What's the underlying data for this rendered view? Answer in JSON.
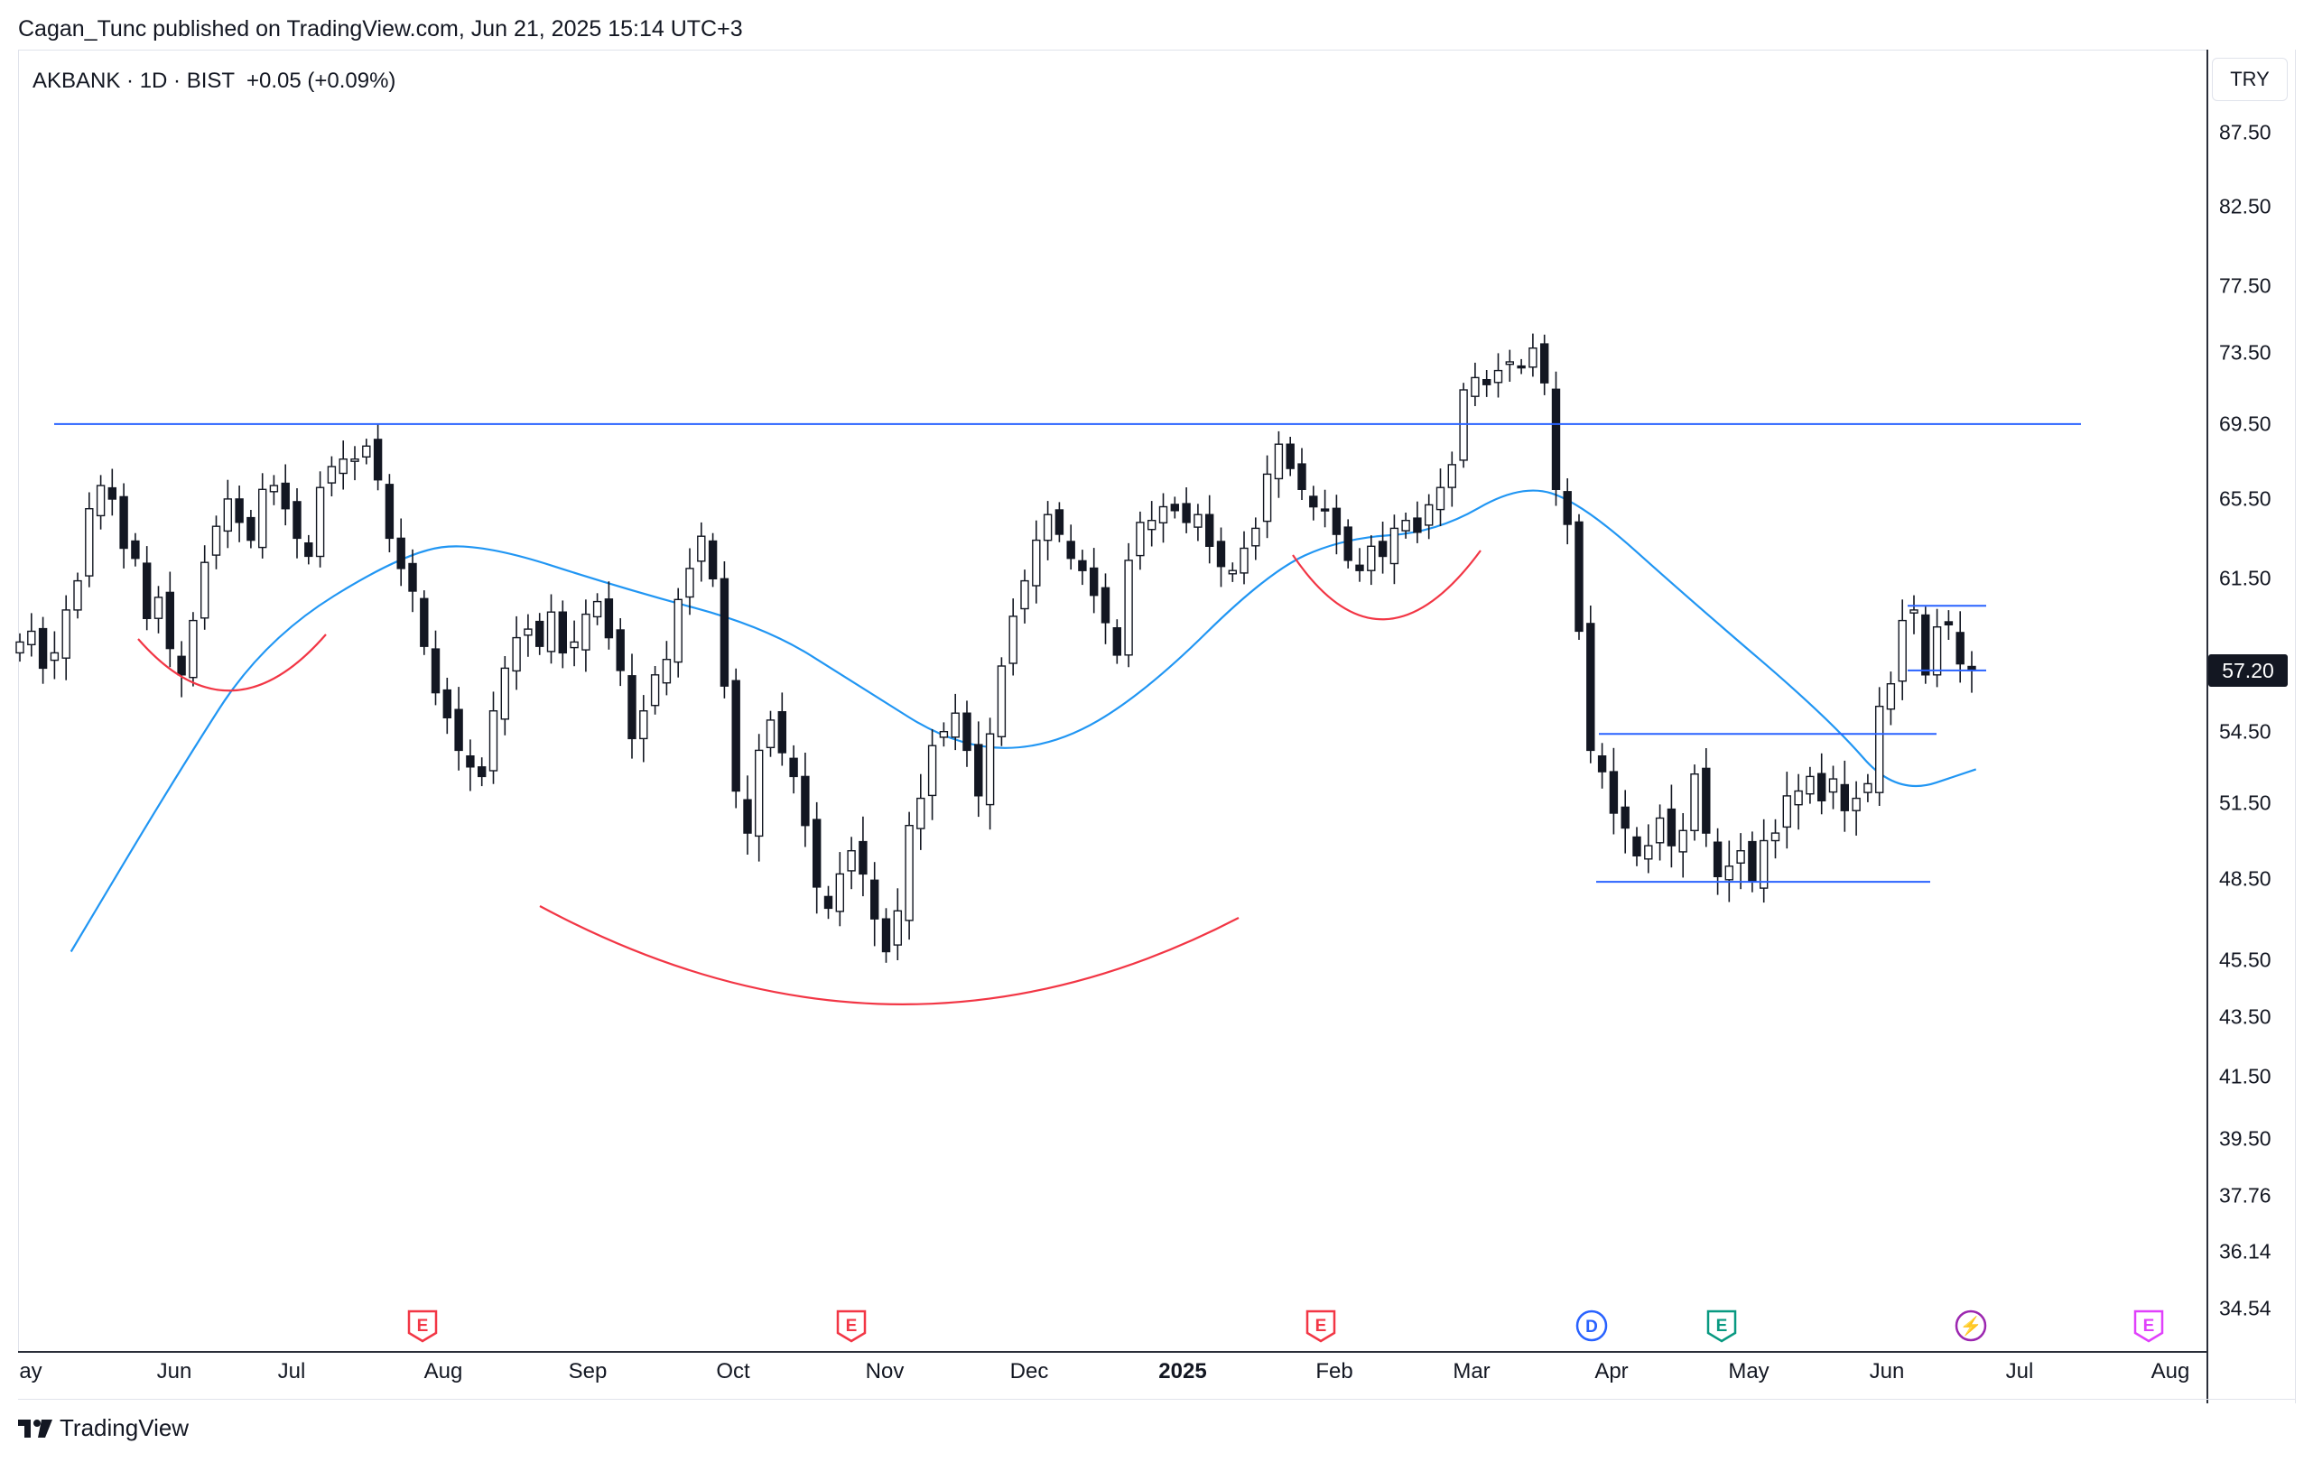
{
  "header": {
    "published_text": "Cagan_Tunc published on TradingView.com, Jun 21, 2025 15:14 UTC+3"
  },
  "legend": {
    "symbol_text": "AKBANK · 1D · BIST",
    "change_text": "+0.05 (+0.09%)"
  },
  "price_axis": {
    "currency": "TRY",
    "labels": [
      "87.50",
      "82.50",
      "77.50",
      "73.50",
      "69.50",
      "65.50",
      "61.50",
      "54.50",
      "51.50",
      "48.50",
      "45.50",
      "43.50",
      "41.50",
      "39.50",
      "37.76",
      "36.14",
      "34.54"
    ],
    "last_price": "57.20"
  },
  "time_axis": {
    "labels": [
      "ay",
      "Jun",
      "Jul",
      "Aug",
      "Sep",
      "Oct",
      "Nov",
      "Dec",
      "2025",
      "Feb",
      "Mar",
      "Apr",
      "May",
      "Jun",
      "Jul",
      "Aug"
    ]
  },
  "events": [
    {
      "letter": "E",
      "kind": "earnings",
      "color": "#f23645"
    },
    {
      "letter": "E",
      "kind": "earnings",
      "color": "#f23645"
    },
    {
      "letter": "E",
      "kind": "earnings",
      "color": "#f23645"
    },
    {
      "letter": "D",
      "kind": "dividend",
      "color": "#2962ff"
    },
    {
      "letter": "E",
      "kind": "earnings",
      "color": "#089981"
    },
    {
      "letter": "⚡",
      "kind": "split",
      "color": "#9c27b0"
    },
    {
      "letter": "E",
      "kind": "earnings",
      "color": "#e040fb"
    }
  ],
  "brand": {
    "name": "TradingView"
  },
  "colors": {
    "candle": "#131722",
    "ma": "#2196f3",
    "level": "#2962ff",
    "arc": "#f23645"
  },
  "chart_data": {
    "type": "candlestick",
    "symbol": "AKBANK",
    "interval": "1D",
    "exchange": "BIST",
    "ylim": [
      34.0,
      89.0
    ],
    "y_scale": "log",
    "last_price": 57.2,
    "ma_series": {
      "x": [
        "2024-05-10",
        "2024-06-01",
        "2024-06-20",
        "2024-07-20",
        "2024-08-05",
        "2024-09-05",
        "2024-10-05",
        "2024-10-25",
        "2024-11-15",
        "2024-12-05",
        "2024-12-25",
        "2025-01-20",
        "2025-02-05",
        "2025-02-25",
        "2025-03-15",
        "2025-03-28",
        "2025-04-20",
        "2025-05-20",
        "2025-06-03",
        "2025-06-20"
      ],
      "values": [
        45.8,
        52.5,
        58.6,
        62.8,
        63.3,
        61.0,
        59.2,
        56.5,
        53.8,
        53.8,
        56.2,
        61.8,
        63.5,
        63.8,
        66.3,
        65.3,
        60.5,
        55.0,
        51.8,
        52.9
      ]
    },
    "horizontal_levels": [
      69.5,
      60.2,
      57.2,
      54.4,
      48.4
    ],
    "candles": {
      "note": "daily OHLC approximated from the chart",
      "close": [
        58.5,
        59.0,
        57.3,
        58.0,
        60.0,
        61.4,
        65.0,
        66.2,
        65.5,
        63.0,
        62.5,
        59.6,
        60.6,
        58.2,
        57.0,
        59.5,
        62.3,
        64.1,
        65.5,
        64.3,
        63.4,
        66.0,
        66.2,
        65.0,
        63.5,
        62.6,
        66.1,
        67.2,
        67.6,
        67.6,
        68.3,
        66.5,
        63.5,
        62.0,
        60.9,
        58.3,
        56.2,
        55.1,
        53.7,
        53.0,
        52.6,
        55.4,
        57.3,
        58.7,
        59.1,
        58.3,
        59.9,
        58.0,
        58.5,
        59.8,
        60.4,
        58.7,
        57.2,
        54.2,
        55.4,
        57.0,
        57.7,
        60.5,
        62.0,
        63.6,
        61.5,
        56.5,
        52.0,
        50.3,
        53.7,
        55.0,
        53.6,
        52.6,
        50.6,
        48.2,
        47.4,
        48.7,
        49.6,
        48.7,
        47.0,
        45.8,
        47.3,
        50.6,
        51.7,
        53.9,
        54.5,
        55.3,
        53.7,
        51.8,
        54.4,
        57.4,
        59.7,
        61.4,
        63.4,
        64.7,
        63.7,
        62.5,
        61.9,
        60.7,
        59.4,
        57.9,
        62.4,
        64.3,
        64.4,
        65.1,
        64.9,
        64.3,
        64.7,
        63.1,
        62.1,
        61.9,
        63.0,
        64.0,
        66.8,
        68.4,
        67.1,
        66.0,
        65.1,
        64.9,
        63.7,
        62.4,
        61.9,
        63.1,
        62.6,
        64.0,
        64.4,
        63.8,
        65.2,
        66.1,
        67.3,
        71.4,
        72.1,
        71.7,
        72.5,
        73.0,
        72.7,
        73.8,
        71.8,
        66.0,
        64.2,
        59.0,
        53.7,
        52.8,
        51.1,
        50.5,
        49.4,
        49.8,
        50.9,
        49.8,
        50.4,
        52.7,
        50.3,
        48.6,
        49.0,
        49.6,
        48.4,
        50.0,
        50.3,
        51.8,
        52.0,
        52.6,
        51.6,
        52.5,
        51.2,
        51.7,
        52.3,
        55.6,
        56.6,
        59.5,
        60.0,
        57.0,
        59.2,
        59.3,
        57.5,
        57.2
      ]
    }
  }
}
